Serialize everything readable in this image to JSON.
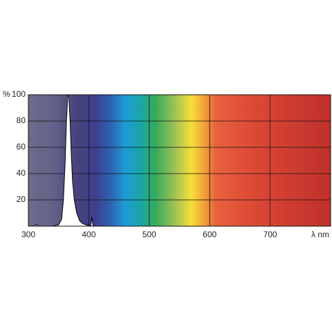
{
  "chart_data": {
    "type": "area",
    "xlabel": "λ nm",
    "ylabel": "%",
    "x": [
      300,
      310,
      313,
      316,
      340,
      350,
      355,
      358,
      361,
      363,
      365,
      366,
      367,
      369,
      371,
      373,
      376,
      380,
      385,
      390,
      395,
      400,
      403,
      404,
      405,
      406,
      407,
      410,
      420,
      800
    ],
    "values": [
      0,
      0,
      1.5,
      0,
      0,
      1,
      5,
      20,
      50,
      80,
      98,
      100,
      98,
      80,
      55,
      35,
      20,
      10,
      4,
      2,
      1,
      0.5,
      0.5,
      3,
      7,
      3,
      0.5,
      0,
      0,
      0
    ],
    "color": "#000000",
    "xlim": [
      300,
      800
    ],
    "xticks": [
      300,
      400,
      500,
      600,
      700
    ],
    "ylim": [
      0,
      100
    ],
    "yticks": [
      20,
      40,
      60,
      80,
      100
    ],
    "grid": true
  }
}
